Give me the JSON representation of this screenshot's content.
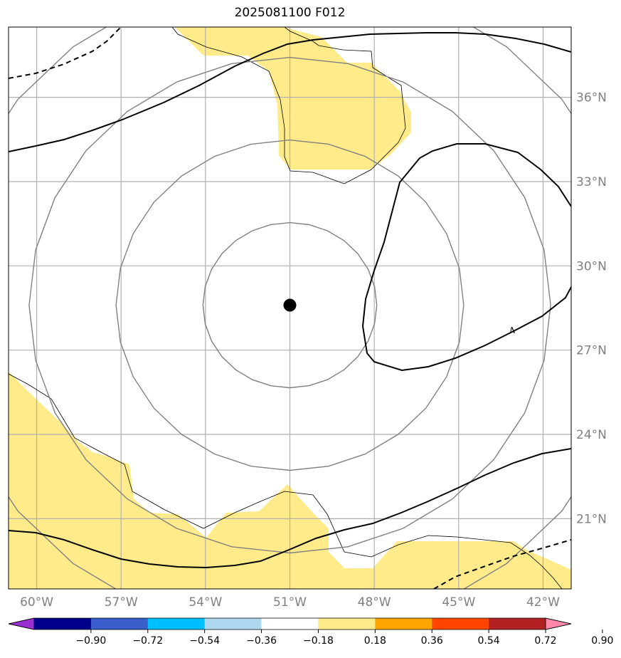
{
  "title": "2025081100 F012",
  "map": {
    "extent": {
      "lon": [
        -61.0,
        -41.0
      ],
      "lat": [
        18.5,
        38.5
      ]
    },
    "gridlines": true,
    "lon_ticks": [
      {
        "value": -60,
        "label": "60°W"
      },
      {
        "value": -57,
        "label": "57°W"
      },
      {
        "value": -54,
        "label": "54°W"
      },
      {
        "value": -51,
        "label": "51°W"
      },
      {
        "value": -48,
        "label": "48°W"
      },
      {
        "value": -45,
        "label": "45°W"
      },
      {
        "value": -42,
        "label": "42°W"
      }
    ],
    "lat_ticks": [
      {
        "value": 21,
        "label": "21°N"
      },
      {
        "value": 24,
        "label": "24°N"
      },
      {
        "value": 27,
        "label": "27°N"
      },
      {
        "value": 30,
        "label": "30°N"
      },
      {
        "value": 33,
        "label": "33°N"
      },
      {
        "value": 36,
        "label": "36°N"
      }
    ],
    "center_marker": {
      "lon": -51.0,
      "lat": 28.6
    },
    "range_rings_deg": [
      3,
      6,
      9,
      12
    ],
    "contour_label": "4",
    "colors": {
      "shade_yellow": "#ffeb8a",
      "gridline": "#b0b0b0",
      "ring": "#808080",
      "contour": "#000000"
    }
  },
  "colorbar": {
    "levels": [
      "−0.90",
      "−0.72",
      "−0.54",
      "−0.36",
      "−0.18",
      "0.18",
      "0.36",
      "0.54",
      "0.72",
      "0.90"
    ],
    "colors": [
      "#9b30d0",
      "#00008b",
      "#3a5fcd",
      "#00bfff",
      "#add8f0",
      "#ffffff",
      "#ffeb8a",
      "#ffa500",
      "#ff4500",
      "#b22222",
      "#ff88aa"
    ]
  }
}
